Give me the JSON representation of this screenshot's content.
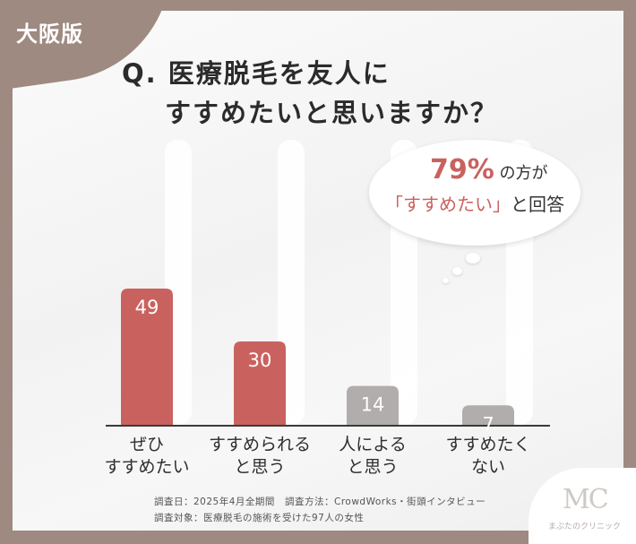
{
  "tag": "大阪版",
  "question": {
    "line1": "Q. 医療脱毛を友人に",
    "line2": "すすめたいと思いますか？"
  },
  "callout": {
    "percent": "79%",
    "suffix": "の方が",
    "quote_open": "「",
    "quote_text": "すすめたい",
    "quote_close": "」",
    "answer": "と回答"
  },
  "colors": {
    "highlight": "#c9625f",
    "muted": "#b0adac",
    "background": "#9e8a80"
  },
  "chart_data": {
    "type": "bar",
    "categories": [
      "ぜひ\nすすめたい",
      "すすめられる\nと思う",
      "人による\nと思う",
      "すすめたく\nない"
    ],
    "category_lines": [
      [
        "ぜひ",
        "すすめたい"
      ],
      [
        "すすめられる",
        "と思う"
      ],
      [
        "人による",
        "と思う"
      ],
      [
        "すすめたく",
        "ない"
      ]
    ],
    "values": [
      49,
      30,
      14,
      7
    ],
    "value_labels": [
      "49",
      "30",
      "14",
      "7"
    ],
    "bar_colors": [
      "#c9625f",
      "#c9625f",
      "#b0adac",
      "#b0adac"
    ],
    "ylim": [
      0,
      60
    ],
    "title": "",
    "xlabel": "",
    "ylabel": ""
  },
  "footnotes": {
    "survey_date": "調査日：2025年4月全期間",
    "survey_method": "調査方法：CrowdWorks・街頭インタビュー",
    "survey_target": "調査対象：医療脱毛の施術を受けた97人の女性"
  },
  "logo": {
    "mark": "MC",
    "name": "まぶたのクリニック"
  }
}
